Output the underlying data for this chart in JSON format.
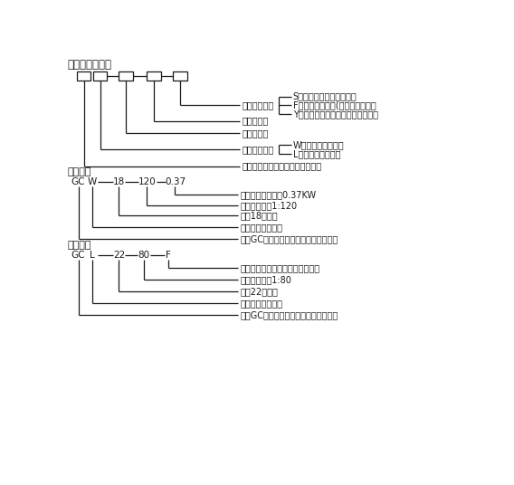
{
  "title": "机型表示方法：",
  "example1_label": "示例一：",
  "example2_label": "示例二：",
  "example1_boxes": [
    "GC",
    "W",
    "18",
    "120",
    "0.37"
  ],
  "example2_boxes": [
    "GC",
    "L",
    "22",
    "80",
    "F"
  ],
  "bg_color": "#ffffff",
  "line_color": "#1a1a1a",
  "text_color": "#1a1a1a",
  "font_size": 7.0,
  "title_font_size": 8.5,
  "section_label_font_size": 8.0,
  "top_labels": [
    "表示输入方式",
    "表示减速比",
    "表示机型号",
    "表示安装方式",
    "本系列减速器代号（铝合金外壳）"
  ],
  "top_sublabels_input": [
    "S表示轴输入（即双轴型）",
    "F表示配连接法兰(用户自配电机）",
    "Y表示配电机并表明电机功率与极数"
  ],
  "top_sublabels_mount": [
    "W表示卧式底脚安装",
    "L表示立式法兰安装"
  ],
  "example1_labels": [
    "表示带电机功率为0.37KW",
    "表示减速比为1:120",
    "表示18机型号",
    "表示卧式底脚安装",
    "表示GC系列（铝合金外壳）斜齿减速器"
  ],
  "example2_labels": [
    "表示配连接法兰（用户自配电机）",
    "表示减速比为1:80",
    "表示22机型号",
    "表示立式法兰安装",
    "表示GC系列（铝合金外壳）斜齿减速器"
  ]
}
